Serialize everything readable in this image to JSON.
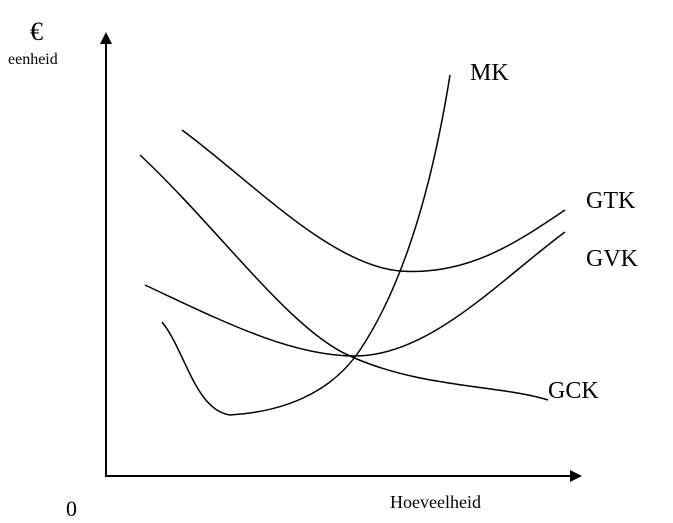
{
  "axes": {
    "y_symbol": "€",
    "y_unit": "eenheid",
    "origin": "0",
    "x_label": "Hoeveelheid"
  },
  "curves": [
    {
      "label": "MK"
    },
    {
      "label": "GTK"
    },
    {
      "label": "GVK"
    },
    {
      "label": "GCK"
    }
  ]
}
